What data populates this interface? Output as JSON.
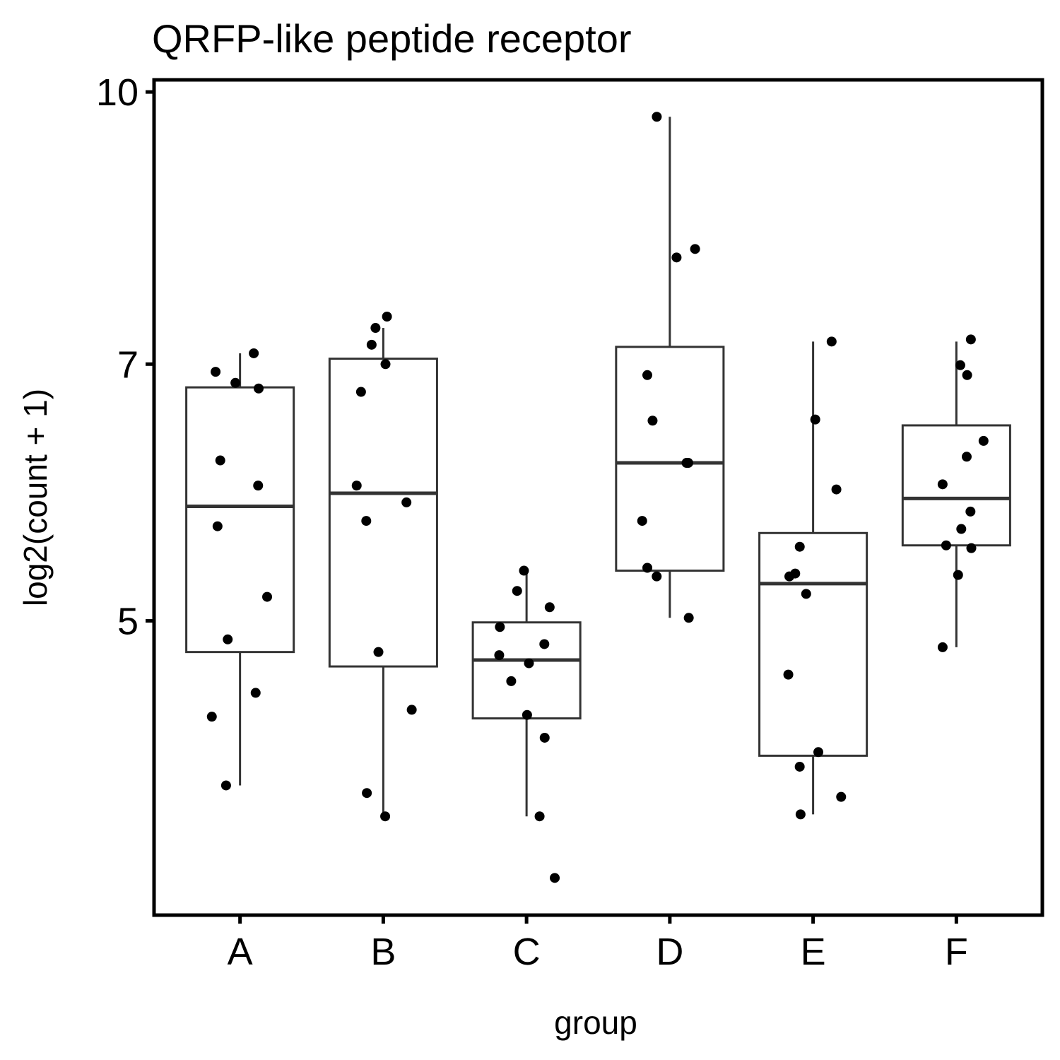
{
  "chart_data": {
    "type": "box",
    "title": "QRFP-like peptide receptor",
    "x_label": "group",
    "y_label": "log2(count + 1)",
    "categories": [
      "A",
      "B",
      "C",
      "D",
      "E",
      "F"
    ],
    "yscale": "log",
    "ylim": [
      3.4,
      10.16
    ],
    "yticks": [
      5,
      7,
      10
    ],
    "box_color": "#333333",
    "point_color": "#000000",
    "boxes": [
      {
        "low": 4.03,
        "q1": 4.8,
        "median": 5.81,
        "q3": 6.79,
        "high": 7.1,
        "points": [
          7.1,
          6.93,
          6.83,
          6.78,
          6.17,
          5.97,
          5.66,
          5.16,
          4.88,
          4.55,
          4.41,
          4.03
        ]
      },
      {
        "low": 3.87,
        "q1": 4.71,
        "median": 5.91,
        "q3": 7.05,
        "high": 7.34,
        "points": [
          7.45,
          7.34,
          7.18,
          7.0,
          6.75,
          5.97,
          5.84,
          5.7,
          4.8,
          4.45,
          3.99,
          3.87
        ]
      },
      {
        "low": 3.87,
        "q1": 4.4,
        "median": 4.75,
        "q3": 4.99,
        "high": 5.34,
        "points": [
          5.34,
          5.2,
          5.09,
          4.96,
          4.85,
          4.78,
          4.73,
          4.62,
          4.42,
          4.29,
          3.87,
          3.57
        ]
      },
      {
        "low": 5.02,
        "q1": 5.34,
        "median": 6.15,
        "q3": 7.16,
        "high": 9.68,
        "points": [
          9.68,
          8.14,
          8.05,
          6.9,
          6.5,
          6.15,
          6.15,
          5.7,
          5.36,
          5.3,
          5.02
        ]
      },
      {
        "low": 3.88,
        "q1": 4.19,
        "median": 5.25,
        "q3": 5.61,
        "high": 7.21,
        "points": [
          7.21,
          6.51,
          5.94,
          5.51,
          5.32,
          5.3,
          5.18,
          4.66,
          4.21,
          4.13,
          3.97,
          3.88
        ]
      },
      {
        "low": 4.83,
        "q1": 5.52,
        "median": 5.87,
        "q3": 6.46,
        "high": 7.21,
        "points": [
          7.23,
          6.99,
          6.9,
          6.33,
          6.2,
          5.98,
          5.77,
          5.64,
          5.52,
          5.5,
          5.31,
          4.83
        ]
      }
    ]
  }
}
